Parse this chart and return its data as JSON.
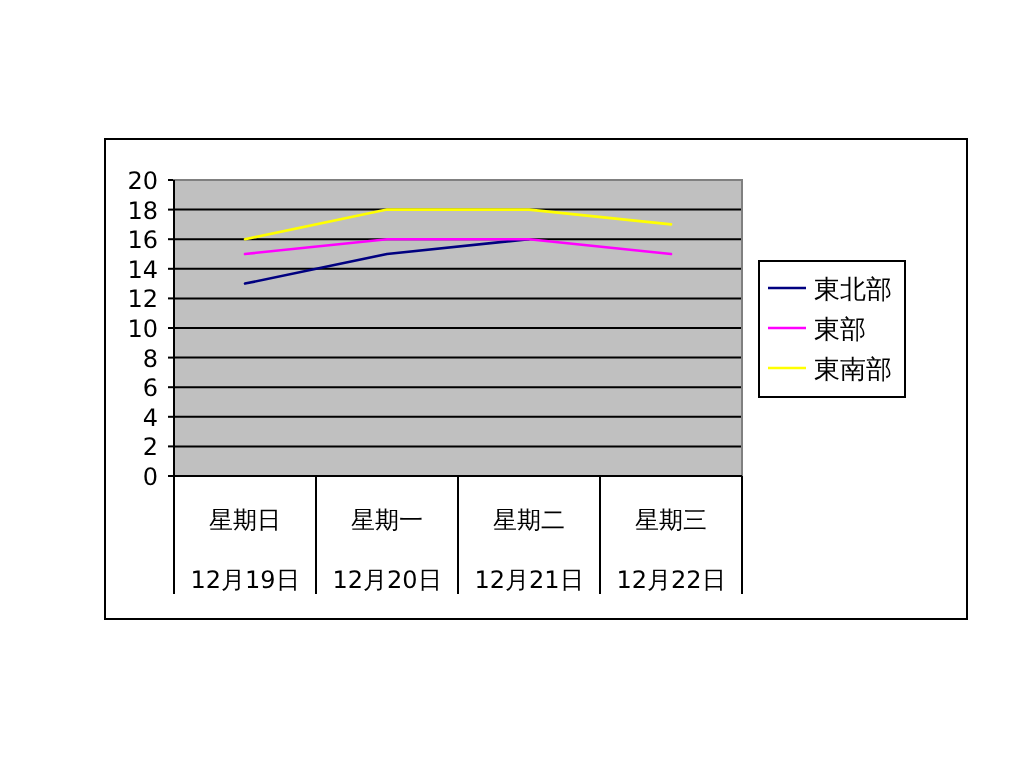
{
  "chart_data": {
    "type": "line",
    "categories": [
      "星期日\n12月19日",
      "星期一\n12月20日",
      "星期二\n12月21日",
      "星期三\n12月22日"
    ],
    "series": [
      {
        "name": "東北部",
        "color": "#000080",
        "values": [
          13,
          15,
          16,
          null
        ]
      },
      {
        "name": "東部",
        "color": "#ff00ff",
        "values": [
          15,
          16,
          16,
          15
        ]
      },
      {
        "name": "東南部",
        "color": "#ffff00",
        "values": [
          16,
          18,
          18,
          17
        ]
      }
    ],
    "ylim": [
      0,
      20
    ],
    "yticks": [
      0,
      2,
      4,
      6,
      8,
      10,
      12,
      14,
      16,
      18,
      20
    ],
    "grid": "y",
    "legend": "right",
    "marker": "none",
    "line_style": "solid"
  }
}
